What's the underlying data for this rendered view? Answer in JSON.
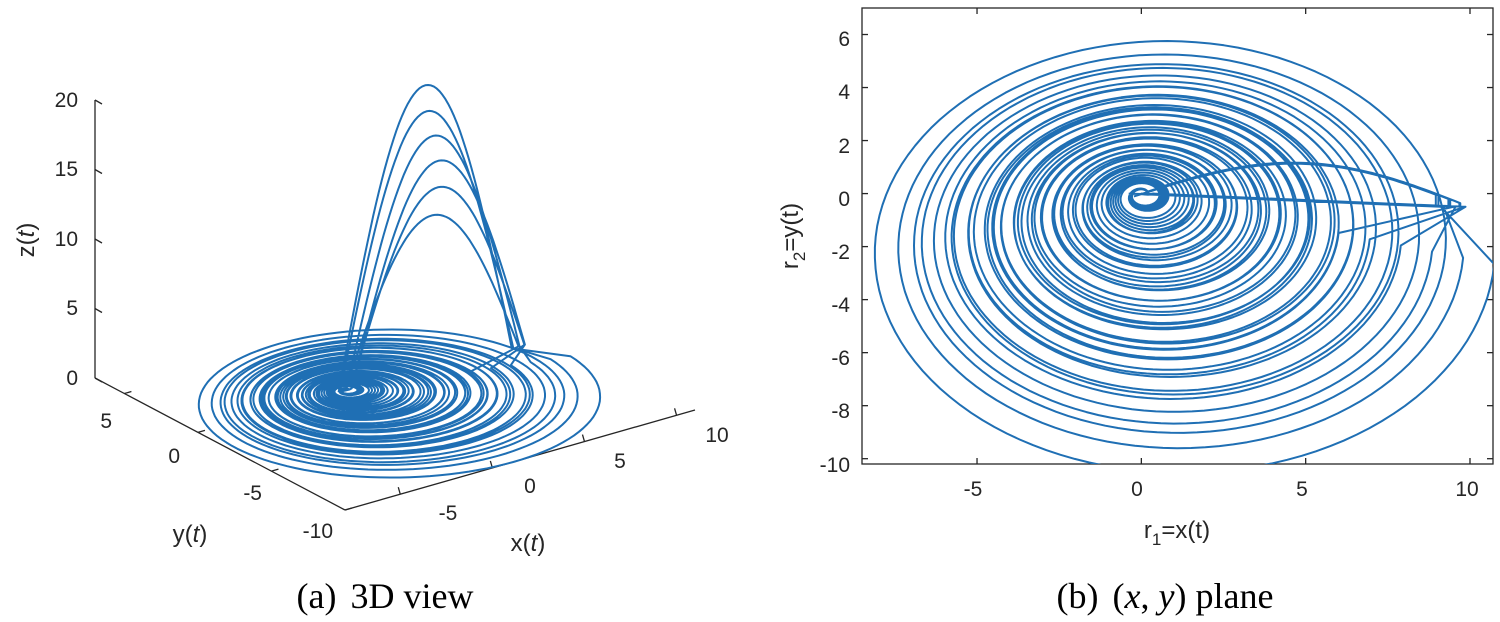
{
  "line_color": "#1f6fb4",
  "chart_data": [
    {
      "type": "line",
      "subtype": "3d-trajectory",
      "caption": {
        "label": "(a)",
        "text": "3D view"
      },
      "xlabel": {
        "base": "x(",
        "var": "t",
        "close": ")"
      },
      "ylabel": {
        "base": "y(",
        "var": "t",
        "close": ")"
      },
      "zlabel": {
        "base": "z(",
        "var": "t",
        "close": ")"
      },
      "xlim": [
        -8,
        11
      ],
      "ylim": [
        -10,
        7
      ],
      "zlim": [
        0,
        20
      ],
      "xticks": [
        "-5",
        "0",
        "5",
        "10"
      ],
      "yticks": [
        "-10",
        "-5",
        "0",
        "5"
      ],
      "zticks": [
        "0",
        "5",
        "10",
        "15",
        "20"
      ],
      "grid": false,
      "series": [
        {
          "trajectory": "spiral-attractor",
          "centre": [
            0,
            0,
            0
          ],
          "max_z": 21
        }
      ]
    },
    {
      "type": "line",
      "subtype": "phase-portrait",
      "caption": {
        "label": "(b)",
        "text_open": "(",
        "x": "x",
        "sep": ", ",
        "y": "y",
        "text_close": ") plane"
      },
      "xlabel": {
        "r": "r",
        "sub": "1",
        "rest": "=x(t)"
      },
      "ylabel": {
        "r": "r",
        "sub": "2",
        "rest": "=y(t)"
      },
      "xlim": [
        -8.5,
        10.7
      ],
      "ylim": [
        -10.2,
        7
      ],
      "xticks": [
        "-5",
        "0",
        "5",
        "10"
      ],
      "yticks": [
        "-10",
        "-8",
        "-6",
        "-4",
        "-2",
        "0",
        "2",
        "4",
        "6"
      ],
      "grid": false,
      "series": [
        {
          "trajectory": "spiral-attractor",
          "centre": [
            0,
            0
          ],
          "x_range": [
            -8.5,
            10.6
          ],
          "y_range": [
            -10,
            7
          ]
        }
      ]
    }
  ]
}
